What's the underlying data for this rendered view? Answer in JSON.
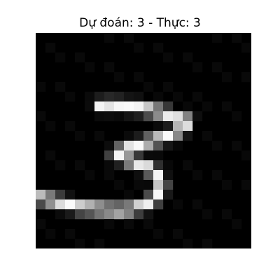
{
  "figure": {
    "title": "Dự đoán: 3 - Thực: 3"
  },
  "image": {
    "grid_size": 22,
    "background": "#000000",
    "digit_strokes": [
      {
        "name": "top-bar",
        "points": [
          [
            6.6,
            7.4
          ],
          [
            7.6,
            7.3
          ],
          [
            8.9,
            7.4
          ],
          [
            10.0,
            7.5
          ],
          [
            11.0,
            7.7
          ],
          [
            12.0,
            7.9
          ],
          [
            13.2,
            8.2
          ]
        ]
      },
      {
        "name": "top-right-bend",
        "points": [
          [
            13.2,
            8.2
          ],
          [
            14.0,
            8.6
          ],
          [
            14.8,
            8.8
          ],
          [
            15.5,
            9.0
          ],
          [
            15.3,
            9.4
          ],
          [
            14.7,
            9.8
          ],
          [
            14.1,
            10.2
          ],
          [
            13.5,
            10.5
          ],
          [
            13.0,
            10.7
          ]
        ]
      },
      {
        "name": "mid-return",
        "points": [
          [
            13.0,
            10.7
          ],
          [
            11.9,
            11.0
          ],
          [
            10.9,
            11.3
          ],
          [
            10.0,
            11.6
          ],
          [
            9.2,
            11.8
          ],
          [
            8.6,
            12.1
          ],
          [
            8.2,
            12.5
          ]
        ]
      },
      {
        "name": "lower-curve",
        "points": [
          [
            8.2,
            12.5
          ],
          [
            9.1,
            12.8
          ],
          [
            10.2,
            13.2
          ],
          [
            11.2,
            13.6
          ],
          [
            12.0,
            14.1
          ],
          [
            12.5,
            14.7
          ],
          [
            12.8,
            15.5
          ],
          [
            12.5,
            16.4
          ],
          [
            11.8,
            17.2
          ],
          [
            10.8,
            17.7
          ],
          [
            9.6,
            18.0
          ],
          [
            8.3,
            18.1
          ],
          [
            7.1,
            18.0
          ]
        ]
      },
      {
        "name": "bottom-tail",
        "points": [
          [
            7.1,
            18.0
          ],
          [
            5.8,
            17.9
          ],
          [
            4.6,
            17.8
          ],
          [
            3.6,
            17.6
          ],
          [
            2.6,
            17.3
          ],
          [
            1.8,
            17.1
          ],
          [
            1.0,
            16.9
          ],
          [
            0.2,
            16.8
          ]
        ]
      }
    ]
  }
}
